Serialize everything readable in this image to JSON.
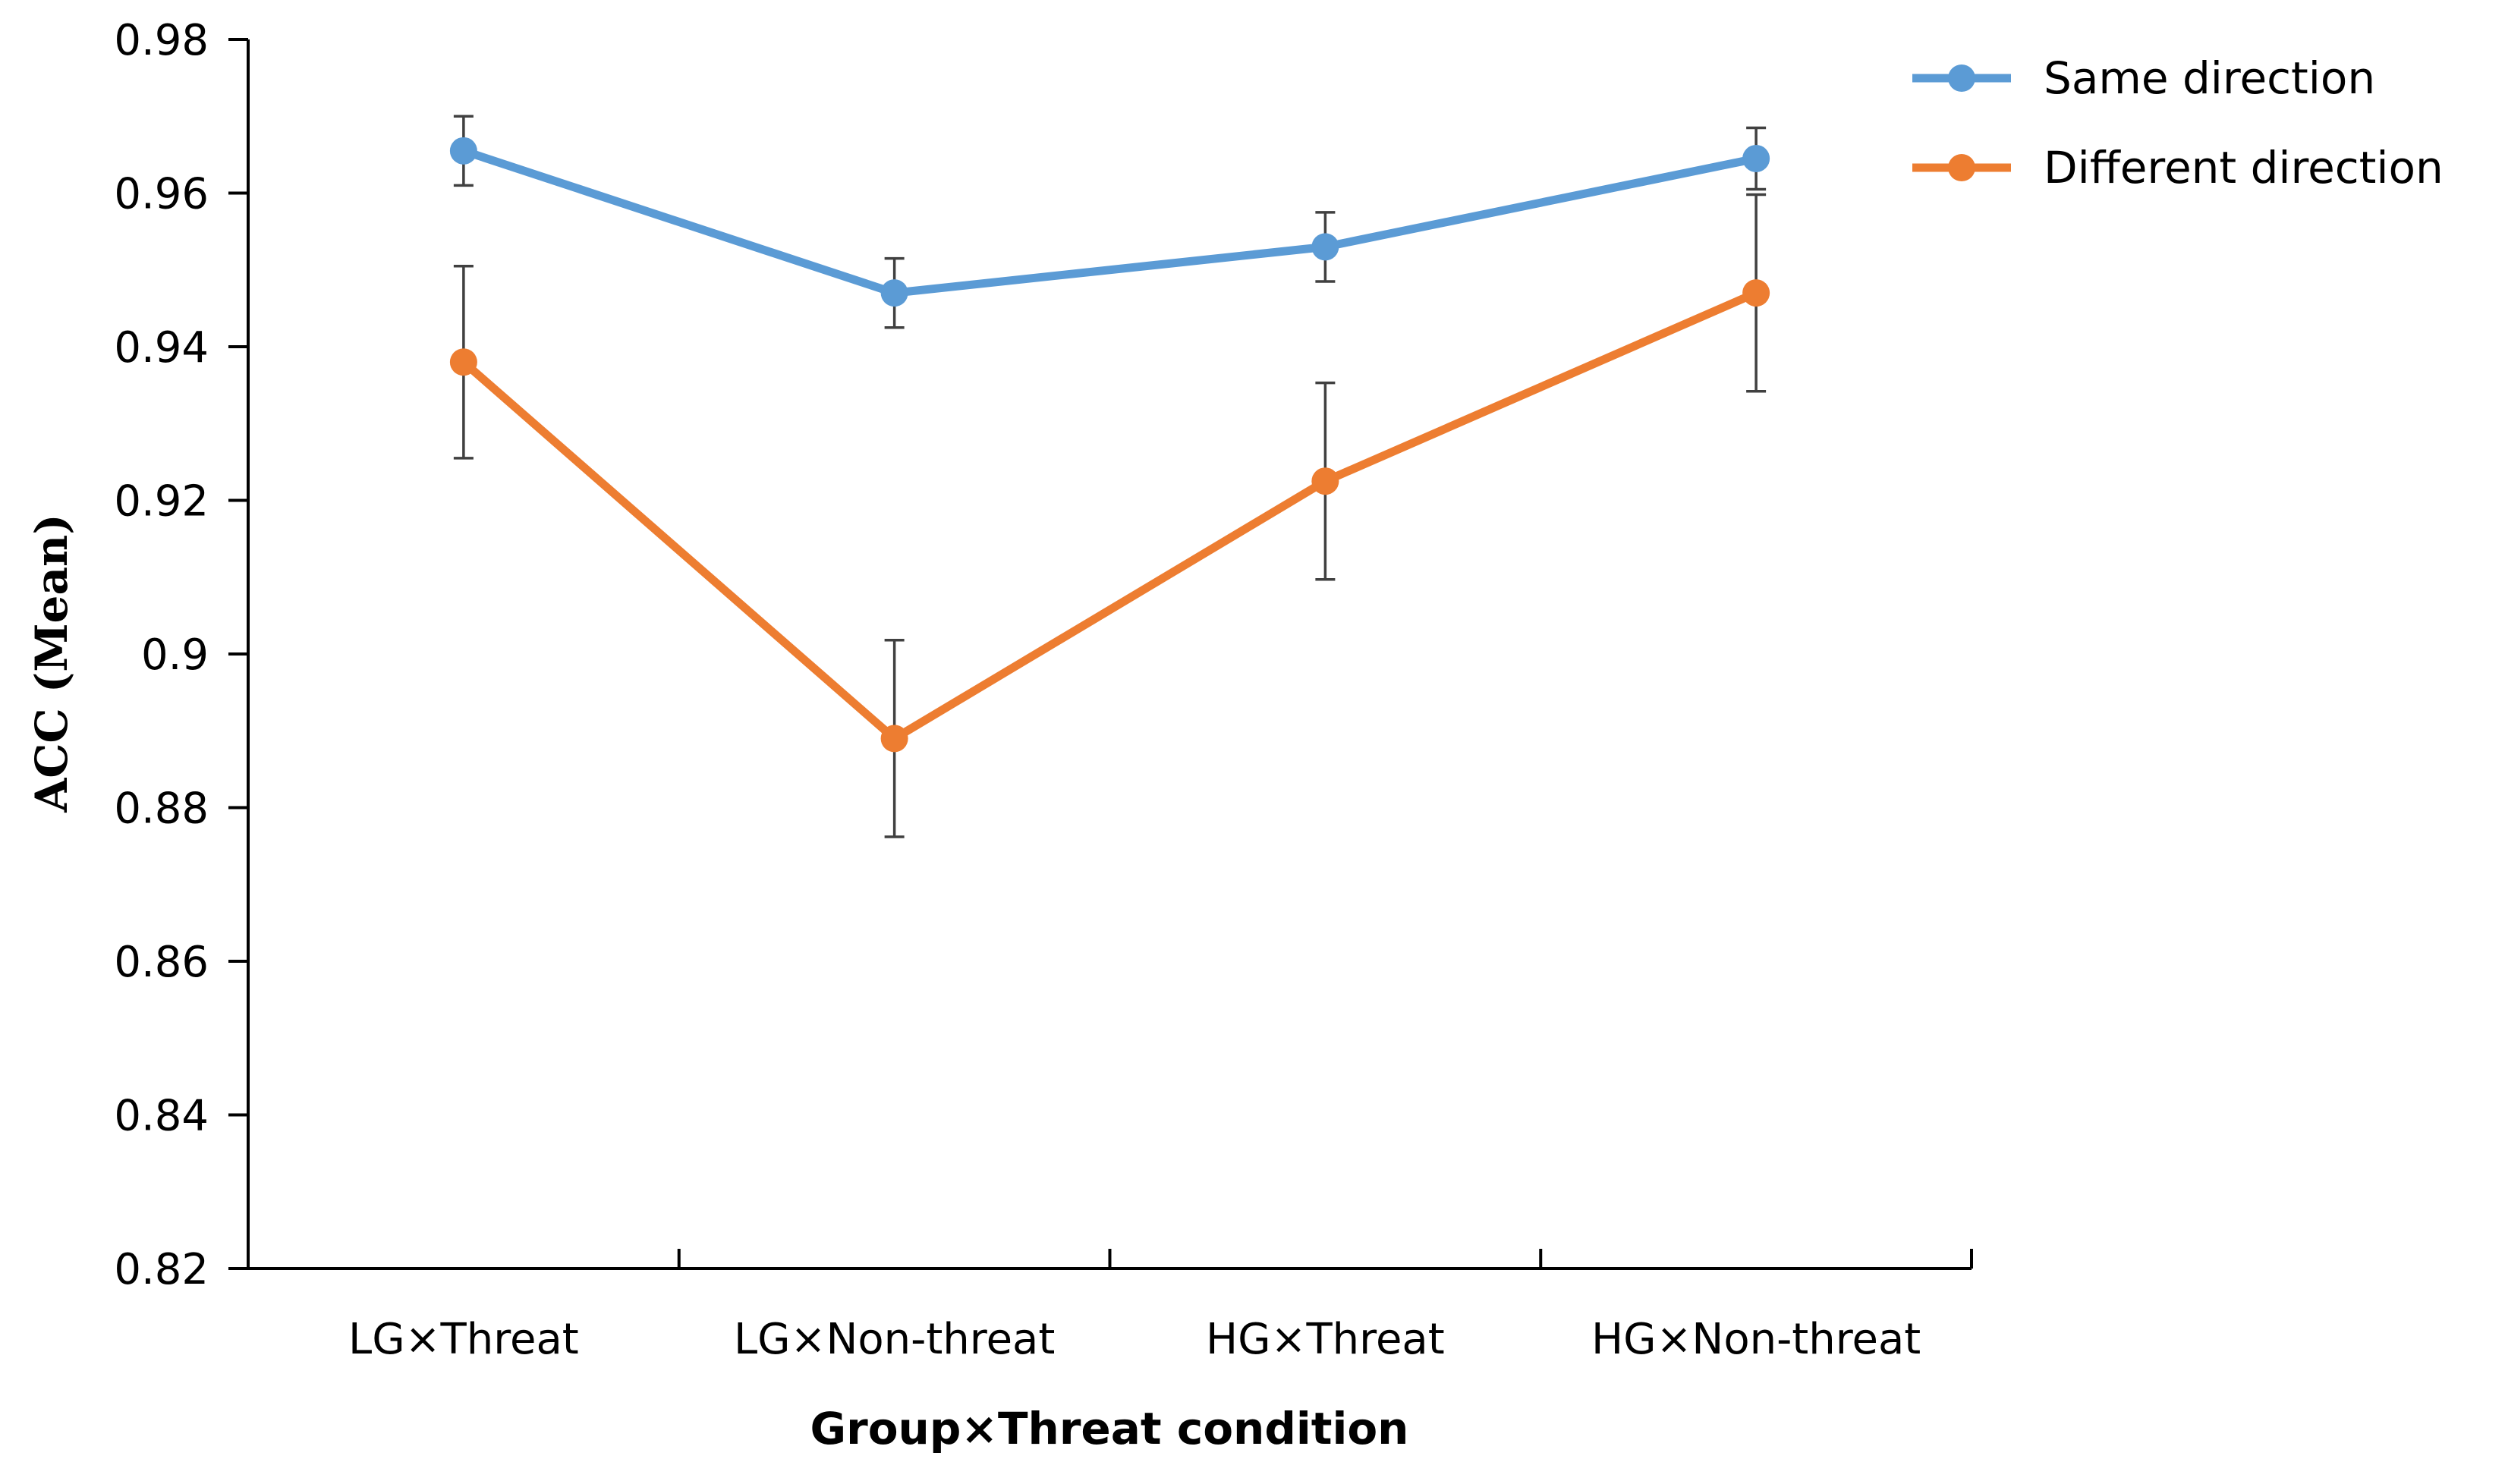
{
  "chart_data": {
    "type": "line",
    "title": "",
    "xlabel": "Group×Threat condition",
    "ylabel": "ACC (Mean)",
    "ylim": [
      0.82,
      0.98
    ],
    "ystep": 0.02,
    "ytick_labels": [
      "0.82",
      "0.84",
      "0.86",
      "0.88",
      "0.9",
      "0.92",
      "0.94",
      "0.96",
      "0.98"
    ],
    "grid": false,
    "legend_position": "top-right",
    "categories": [
      "LG×Threat",
      "LG×Non-threat",
      "HG×Threat",
      "HG×Non-threat"
    ],
    "series": [
      {
        "name": "Same direction",
        "color": "#5B9BD5",
        "values": [
          0.9655,
          0.947,
          0.953,
          0.9645
        ],
        "errors": [
          0.0045,
          0.0045,
          0.0045,
          0.004
        ]
      },
      {
        "name": "Different direction",
        "color": "#ED7D31",
        "values": [
          0.938,
          0.889,
          0.9225,
          0.947
        ],
        "errors": [
          0.0125,
          0.0128,
          0.0128,
          0.0128
        ]
      }
    ]
  }
}
